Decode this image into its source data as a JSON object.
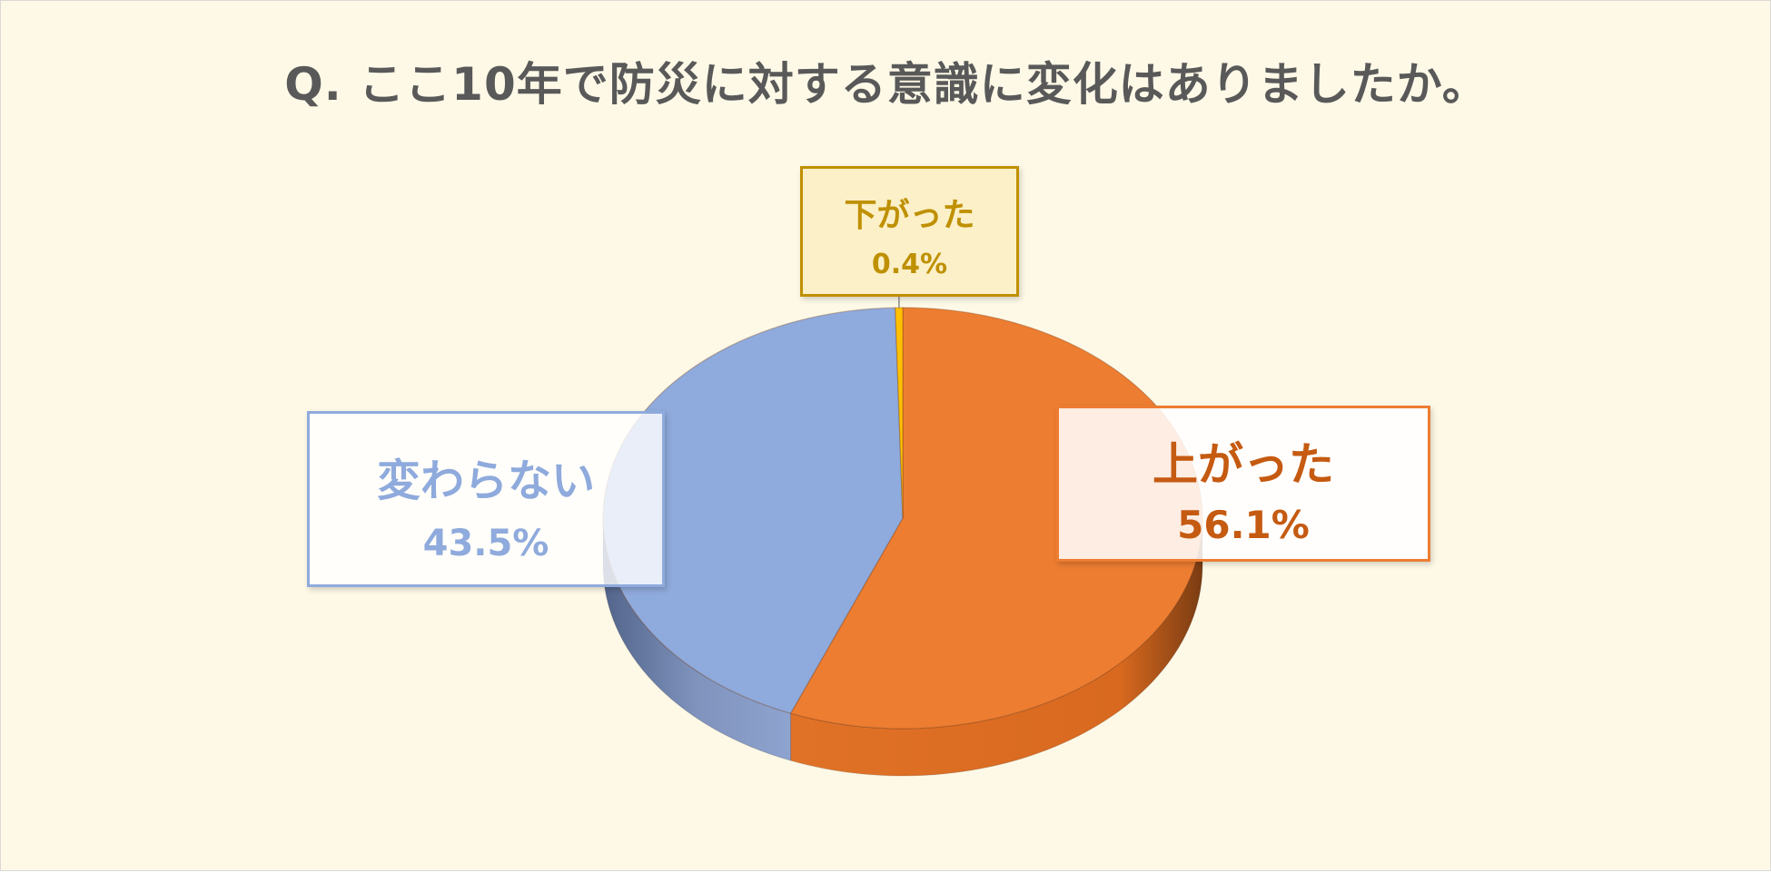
{
  "title": "Q. ここ10年で防災に対する意識に変化はありましたか。",
  "chart_data": {
    "type": "pie",
    "title": "Q. ここ10年で防災に対する意識に変化はありましたか。",
    "style": "3d-pie",
    "legend": "none",
    "slices": [
      {
        "label": "上がった",
        "value": 56.1,
        "display": "56.1%",
        "color": "#ed7d31"
      },
      {
        "label": "変わらない",
        "value": 43.5,
        "display": "43.5%",
        "color": "#8faadc"
      },
      {
        "label": "下がった",
        "value": 0.4,
        "display": "0.4%",
        "color": "#ffc000"
      }
    ]
  },
  "colors": {
    "background": "#fef9e7",
    "title": "#595959"
  }
}
